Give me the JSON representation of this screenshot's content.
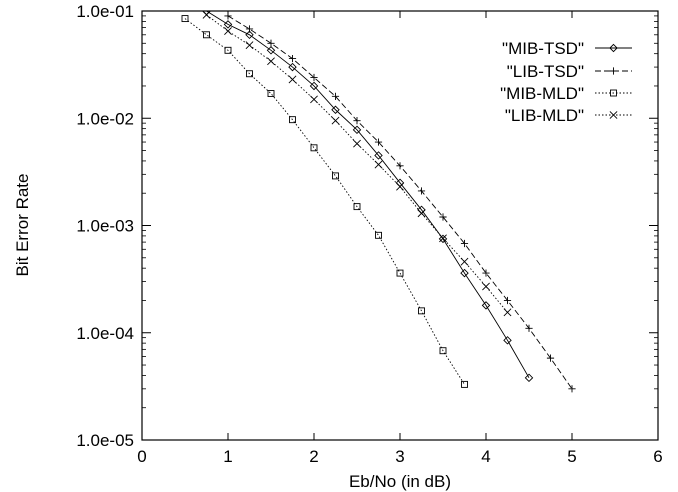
{
  "chart_data": {
    "type": "line",
    "title": "",
    "xlabel": "Eb/No (in dB)",
    "ylabel": "Bit Error Rate",
    "xlim": [
      0,
      6
    ],
    "ylim": [
      1e-05,
      0.1
    ],
    "yscale": "log",
    "grid": false,
    "legend_position": "top-right",
    "x_ticks": [
      0,
      1,
      2,
      3,
      4,
      5,
      6
    ],
    "x_tick_labels": [
      "0",
      "1",
      "2",
      "3",
      "4",
      "5",
      "6"
    ],
    "y_ticks": [
      1e-05,
      0.0001,
      0.001,
      0.01,
      0.1
    ],
    "y_tick_labels": [
      "1.0e-05",
      "1.0e-04",
      "1.0e-03",
      "1.0e-02",
      "1.0e-01"
    ],
    "series": [
      {
        "name": "\"MIB-TSD\"",
        "marker": "diamond",
        "line_style": "solid",
        "x": [
          0.75,
          1.0,
          1.25,
          1.5,
          1.75,
          2.0,
          2.25,
          2.5,
          2.75,
          3.0,
          3.25,
          3.5,
          3.75,
          4.0,
          4.25,
          4.5
        ],
        "y": [
          0.1,
          0.075,
          0.06,
          0.043,
          0.03,
          0.02,
          0.012,
          0.0078,
          0.0045,
          0.0025,
          0.0014,
          0.00075,
          0.00036,
          0.00018,
          8.5e-05,
          3.8e-05
        ]
      },
      {
        "name": "\"LIB-TSD\"",
        "marker": "plus",
        "line_style": "dashed",
        "x": [
          1.0,
          1.25,
          1.5,
          1.75,
          2.0,
          2.25,
          2.5,
          2.75,
          3.0,
          3.25,
          3.5,
          3.75,
          4.0,
          4.25,
          4.5,
          4.75,
          5.0
        ],
        "y": [
          0.09,
          0.068,
          0.05,
          0.036,
          0.024,
          0.016,
          0.0095,
          0.006,
          0.0036,
          0.0021,
          0.0012,
          0.00068,
          0.00036,
          0.0002,
          0.00011,
          5.8e-05,
          3e-05
        ]
      },
      {
        "name": "\"MIB-MLD\"",
        "marker": "square",
        "line_style": "dotted",
        "x": [
          0.5,
          0.75,
          1.0,
          1.25,
          1.5,
          1.75,
          2.0,
          2.25,
          2.5,
          2.75,
          3.0,
          3.25,
          3.5,
          3.75
        ],
        "y": [
          0.085,
          0.06,
          0.043,
          0.026,
          0.017,
          0.0097,
          0.0053,
          0.0029,
          0.0015,
          0.00081,
          0.00036,
          0.00016,
          6.8e-05,
          3.3e-05
        ]
      },
      {
        "name": "\"LIB-MLD\"",
        "marker": "cross",
        "line_style": "dotted",
        "x": [
          0.75,
          1.0,
          1.25,
          1.5,
          1.75,
          2.0,
          2.25,
          2.5,
          2.75,
          3.0,
          3.25,
          3.5,
          3.75,
          4.0,
          4.25
        ],
        "y": [
          0.092,
          0.065,
          0.048,
          0.034,
          0.023,
          0.015,
          0.0095,
          0.0058,
          0.0037,
          0.0023,
          0.0013,
          0.00076,
          0.00046,
          0.00027,
          0.000155
        ]
      }
    ]
  }
}
